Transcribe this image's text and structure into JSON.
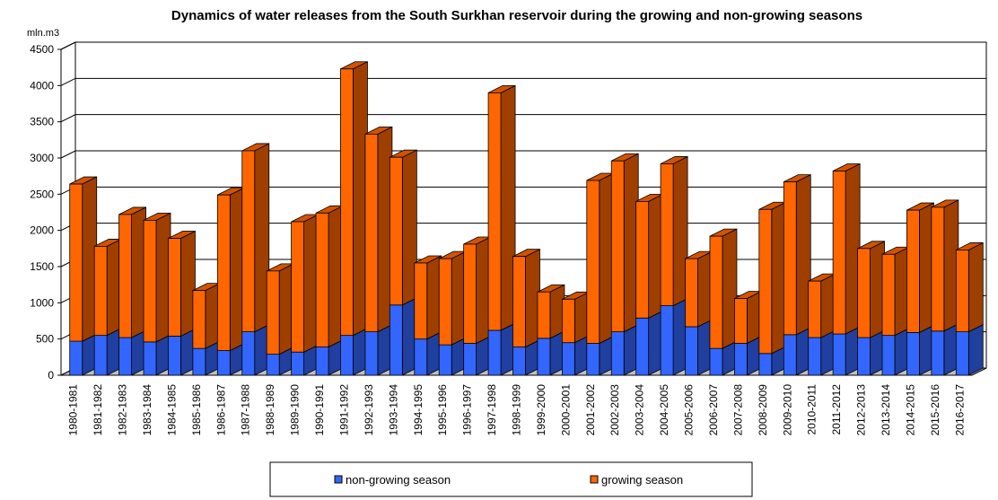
{
  "chart_data": {
    "type": "bar",
    "stacked": true,
    "style": "3d",
    "title": "Dynamics of water releases from the South Surkhan reservoir during the growing and non-growing seasons",
    "ylabel": "mln.m3",
    "xlabel": "",
    "ylim": [
      0,
      4500
    ],
    "yticks": [
      0,
      500,
      1000,
      1500,
      2000,
      2500,
      3000,
      3500,
      4000,
      4500
    ],
    "grid": true,
    "legend": "bottom",
    "categories": [
      "1980-1981",
      "1981-1982",
      "1982-1983",
      "1983-1984",
      "1984-1985",
      "1985-1986",
      "1986-1987",
      "1987-1988",
      "1988-1989",
      "1989-1990",
      "1990-1991",
      "1991-1992",
      "1992-1993",
      "1993-1994",
      "1994-1995",
      "1995-1996",
      "1996-1997",
      "1997-1998",
      "1998-1999",
      "1999-2000",
      "2000-2001",
      "2001-2002",
      "2002-2003",
      "2003-2004",
      "2004-2005",
      "2005-2006",
      "2006-2007",
      "2007-2008",
      "2008-2009",
      "2009-2010",
      "2010-2011",
      "2011-2012",
      "2012-2013",
      "2013-2014",
      "2014-2015",
      "2015-2016",
      "2016-2017"
    ],
    "series": [
      {
        "name": "non-growing season",
        "color": "#3366ff",
        "values": [
          470,
          550,
          520,
          460,
          540,
          370,
          340,
          600,
          290,
          320,
          390,
          550,
          600,
          970,
          500,
          420,
          440,
          620,
          390,
          510,
          450,
          440,
          600,
          790,
          960,
          670,
          370,
          440,
          300,
          560,
          520,
          570,
          520,
          550,
          590,
          610,
          600
        ]
      },
      {
        "name": "growing season",
        "color": "#ff6600",
        "values": [
          2170,
          1230,
          1700,
          1680,
          1350,
          800,
          2150,
          2500,
          1150,
          1800,
          1850,
          3680,
          2730,
          2040,
          1050,
          1190,
          1370,
          3280,
          1250,
          640,
          600,
          2250,
          2360,
          1610,
          1960,
          940,
          1550,
          620,
          1990,
          2110,
          780,
          2250,
          1230,
          1120,
          1690,
          1710,
          1130
        ]
      }
    ]
  }
}
